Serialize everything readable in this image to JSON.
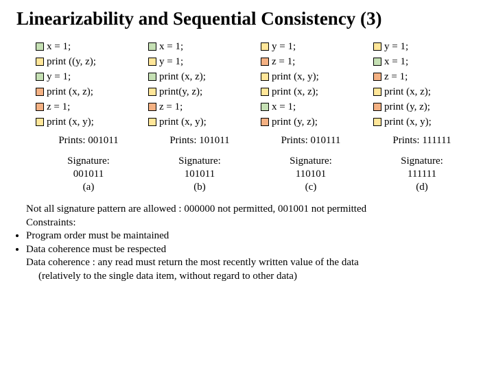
{
  "title": "Linearizability and Sequential Consistency (3)",
  "marker_colors": {
    "P0": {
      "fill": "#c5e0b4",
      "border": "#000000"
    },
    "P1": {
      "fill": "#ffe699",
      "border": "#000000"
    },
    "P2": {
      "fill": "#f4b183",
      "border": "#000000"
    }
  },
  "columns": [
    {
      "ops": [
        {
          "proc": "P0",
          "text": "x = 1;"
        },
        {
          "proc": "P1",
          "text": "print ((y, z);"
        },
        {
          "proc": "P0",
          "text": "y = 1;"
        },
        {
          "proc": "P2",
          "text": "print (x, z);"
        },
        {
          "proc": "P2",
          "text": "z = 1;"
        },
        {
          "proc": "P1",
          "text": "print (x, y);"
        }
      ],
      "prints": "Prints: 001011",
      "signature": "Signature:\n001011\n(a)"
    },
    {
      "ops": [
        {
          "proc": "P0",
          "text": "x = 1;"
        },
        {
          "proc": "P1",
          "text": "y = 1;"
        },
        {
          "proc": "P0",
          "text": "print (x, z);"
        },
        {
          "proc": "P1",
          "text": "print(y, z);"
        },
        {
          "proc": "P2",
          "text": "z = 1;"
        },
        {
          "proc": "P1",
          "text": "print (x, y);"
        }
      ],
      "prints": "Prints: 101011",
      "signature": "Signature:\n101011\n(b)"
    },
    {
      "ops": [
        {
          "proc": "P1",
          "text": "y = 1;"
        },
        {
          "proc": "P2",
          "text": "z = 1;"
        },
        {
          "proc": "P1",
          "text": "print (x, y);"
        },
        {
          "proc": "P1",
          "text": "print (x, z);"
        },
        {
          "proc": "P0",
          "text": "x = 1;"
        },
        {
          "proc": "P2",
          "text": "print (y, z);"
        }
      ],
      "prints": "Prints: 010111",
      "signature": "Signature:\n110101\n(c)"
    },
    {
      "ops": [
        {
          "proc": "P1",
          "text": "y = 1;"
        },
        {
          "proc": "P0",
          "text": "x = 1;"
        },
        {
          "proc": "P2",
          "text": "z = 1;"
        },
        {
          "proc": "P1",
          "text": "print (x, z);"
        },
        {
          "proc": "P2",
          "text": "print (y, z);"
        },
        {
          "proc": "P1",
          "text": "print (x, y);"
        }
      ],
      "prints": "Prints: 111111",
      "signature": "Signature:\n111111\n(d)"
    }
  ],
  "notes": {
    "line1": "Not all signature pattern are allowed : 000000 not permitted, 001001 not permitted",
    "line2": "Constraints:",
    "bullet1_a": "Program order",
    "bullet1_b": " must be maintained",
    "bullet2_a": "Data coherence",
    "bullet2_b": " must be respected",
    "line5": "Data coherence : any read must return the most recently written value of the data",
    "line6": "(relatively to the single data item, without regard to other data)"
  }
}
